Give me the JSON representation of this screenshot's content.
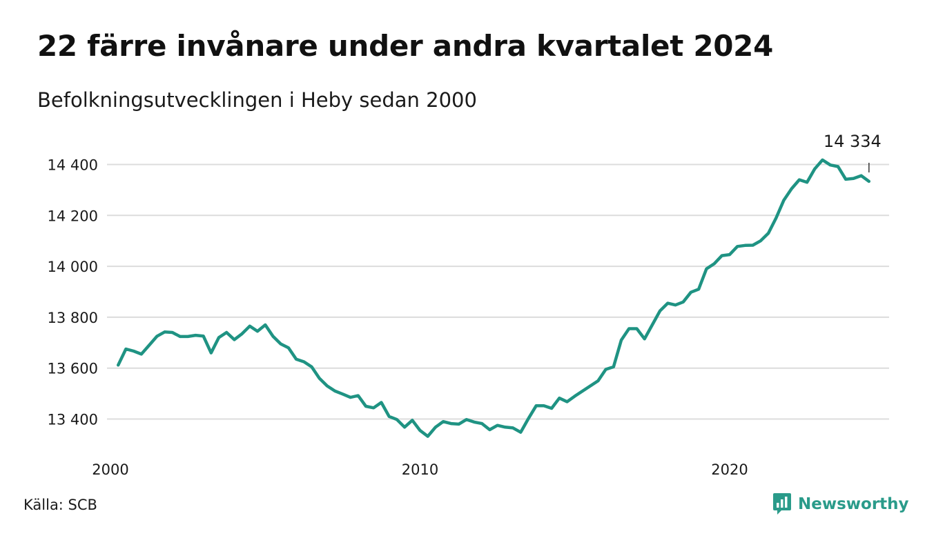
{
  "title": "22 färre invånare under andra kvartalet 2024",
  "subtitle": "Befolkningsutvecklingen i Heby sedan 2000",
  "source": "Källa: SCB",
  "brand": "Newsworthy",
  "colors": {
    "line": "#1f9383",
    "grid": "#dcdcdc",
    "brand": "#2a9b8a",
    "text": "#1a1a1a"
  },
  "icons": {
    "brand_logo": "bar-chart-icon"
  },
  "chart_data": {
    "type": "line",
    "ylim": [
      13300,
      14480
    ],
    "xlim": [
      2000,
      2025.75
    ],
    "y_ticks": [
      13400,
      13600,
      13800,
      14000,
      14200,
      14400
    ],
    "y_tick_labels": [
      "13 400",
      "13 600",
      "13 800",
      "14 000",
      "14 200",
      "14 400"
    ],
    "x_ticks": [
      2000,
      2010,
      2020
    ],
    "x_tick_labels": [
      "2000",
      "2010",
      "2020"
    ],
    "grid": true,
    "series": [
      {
        "x": [
          2000.25,
          2000.5,
          2000.75,
          2001,
          2001.25,
          2001.5,
          2001.75,
          2002,
          2002.25,
          2002.5,
          2002.75,
          2003,
          2003.25,
          2003.5,
          2003.75,
          2004,
          2004.25,
          2004.5,
          2004.75,
          2005,
          2005.25,
          2005.5,
          2005.75,
          2006,
          2006.25,
          2006.5,
          2006.75,
          2007,
          2007.25,
          2007.5,
          2007.75,
          2008,
          2008.25,
          2008.5,
          2008.75,
          2009,
          2009.25,
          2009.5,
          2009.75,
          2010,
          2010.25,
          2010.5,
          2010.75,
          2011,
          2011.25,
          2011.5,
          2011.75,
          2012,
          2012.25,
          2012.5,
          2012.75,
          2013,
          2013.25,
          2013.5,
          2013.75,
          2014,
          2014.25,
          2014.5,
          2014.75,
          2015,
          2015.25,
          2015.5,
          2015.75,
          2016,
          2016.25,
          2016.5,
          2016.75,
          2017,
          2017.25,
          2017.5,
          2017.75,
          2018,
          2018.25,
          2018.5,
          2018.75,
          2019,
          2019.25,
          2019.5,
          2019.75,
          2020,
          2020.25,
          2020.5,
          2020.75,
          2021,
          2021.25,
          2021.5,
          2021.75,
          2022,
          2022.25,
          2022.5,
          2022.75,
          2023,
          2023.25,
          2023.5,
          2023.75,
          2024,
          2024.25,
          2024.5
        ],
        "values": [
          13612,
          13675,
          13667,
          13655,
          13690,
          13725,
          13742,
          13740,
          13724,
          13724,
          13729,
          13726,
          13660,
          13720,
          13740,
          13712,
          13735,
          13765,
          13745,
          13770,
          13725,
          13695,
          13680,
          13635,
          13625,
          13605,
          13560,
          13530,
          13510,
          13498,
          13485,
          13492,
          13450,
          13444,
          13465,
          13410,
          13398,
          13368,
          13395,
          13355,
          13332,
          13368,
          13390,
          13382,
          13380,
          13398,
          13388,
          13382,
          13358,
          13375,
          13368,
          13365,
          13348,
          13402,
          13452,
          13452,
          13442,
          13482,
          13468,
          13490,
          13510,
          13530,
          13550,
          13595,
          13605,
          13710,
          13755,
          13755,
          13715,
          13770,
          13825,
          13855,
          13848,
          13860,
          13898,
          13910,
          13990,
          14010,
          14042,
          14046,
          14078,
          14082,
          14083,
          14100,
          14130,
          14190,
          14260,
          14305,
          14340,
          14330,
          14383,
          14418,
          14398,
          14392,
          14342,
          14345,
          14356,
          14334
        ]
      }
    ],
    "annotation": {
      "x": 2024.5,
      "value": 14334,
      "label": "14 334"
    }
  }
}
